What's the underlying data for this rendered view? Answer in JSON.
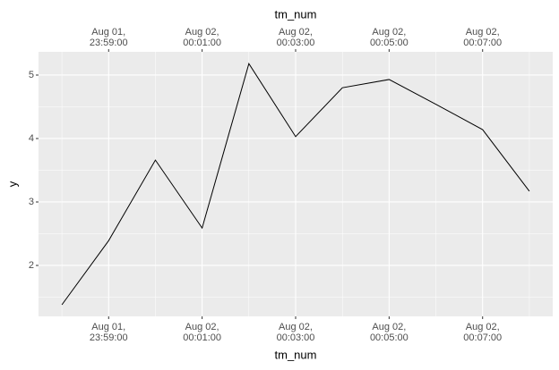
{
  "chart_data": {
    "type": "line",
    "xlabel": "tm_num",
    "xlabel_top": "tm_num",
    "ylabel": "y",
    "x": [
      "Aug 01, 23:58:00",
      "Aug 01, 23:59:00",
      "Aug 02, 00:00:00",
      "Aug 02, 00:01:00",
      "Aug 02, 00:02:00",
      "Aug 02, 00:03:00",
      "Aug 02, 00:04:00",
      "Aug 02, 00:05:00",
      "Aug 02, 00:06:00",
      "Aug 02, 00:07:00",
      "Aug 02, 00:08:00"
    ],
    "series": [
      {
        "color": "#000000",
        "values": [
          1.38,
          2.39,
          3.66,
          2.59,
          5.18,
          4.03,
          4.8,
          4.93,
          4.54,
          4.14,
          3.17
        ]
      }
    ],
    "xlim": [
      "Aug 01, 23:57:30",
      "Aug 02, 00:08:30"
    ],
    "xticks": [
      {
        "value": "Aug 01, 23:59:00",
        "label": "Aug 01,\n23:59:00"
      },
      {
        "value": "Aug 02, 00:01:00",
        "label": "Aug 02,\n00:01:00"
      },
      {
        "value": "Aug 02, 00:03:00",
        "label": "Aug 02,\n00:03:00"
      },
      {
        "value": "Aug 02, 00:05:00",
        "label": "Aug 02,\n00:05:00"
      },
      {
        "value": "Aug 02, 00:07:00",
        "label": "Aug 02,\n00:07:00"
      }
    ],
    "ylim": [
      1.197,
      5.366
    ],
    "yticks": [
      2,
      3,
      4,
      5
    ],
    "grid": true,
    "minor_grid": true,
    "panel_background": "#ebebeb"
  }
}
